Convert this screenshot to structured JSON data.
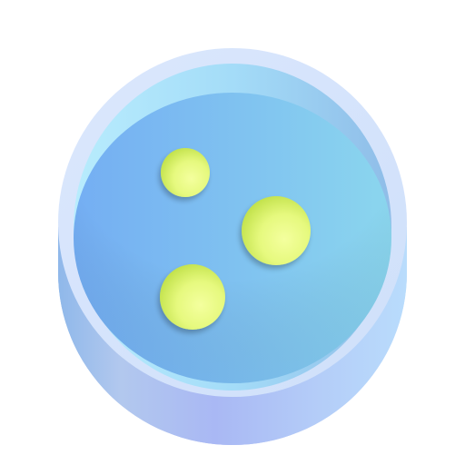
{
  "icon": {
    "name": "petri-dish-icon",
    "colors": {
      "dish_wall_left": "#8fb8ea",
      "dish_wall_mid": "#a9b8f4",
      "dish_wall_right": "#b9dcfc",
      "rim": "#d4e4fc",
      "inner_wall_left": "#aee4fb",
      "inner_wall_right": "#8fbde8",
      "medium_left": "#74b0f2",
      "medium_right": "#8ad4ee",
      "colony_light": "#f2ff9a",
      "colony_mid": "#e2f77a",
      "colony_dark": "#c6e64f"
    },
    "colonies": [
      {
        "name": "colony-small"
      },
      {
        "name": "colony-large"
      },
      {
        "name": "colony-medium"
      }
    ]
  }
}
